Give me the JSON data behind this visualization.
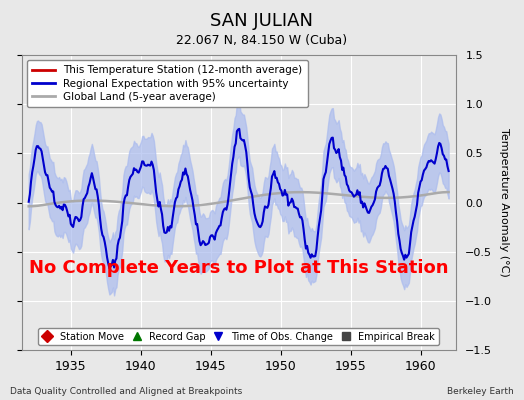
{
  "title": "SAN JULIAN",
  "subtitle": "22.067 N, 84.150 W (Cuba)",
  "ylabel": "Temperature Anomaly (°C)",
  "xlim": [
    1931.5,
    1962.5
  ],
  "ylim": [
    -1.5,
    1.5
  ],
  "xticks": [
    1935,
    1940,
    1945,
    1950,
    1955,
    1960
  ],
  "yticks": [
    -1.5,
    -1.0,
    -0.5,
    0.0,
    0.5,
    1.0,
    1.5
  ],
  "footnote_left": "Data Quality Controlled and Aligned at Breakpoints",
  "footnote_right": "Berkeley Earth",
  "annotation": "No Complete Years to Plot at This Station",
  "annotation_color": "#FF0000",
  "bg_color": "#E8E8E8",
  "plot_bg_color": "#E8E8E8",
  "grid_color": "#FFFFFF",
  "regional_line_color": "#0000CC",
  "regional_fill_color": "#AABBEE",
  "station_line_color": "#CC0000",
  "global_line_color": "#AAAAAA",
  "legend1_items": [
    {
      "label": "This Temperature Station (12-month average)",
      "color": "#CC0000",
      "lw": 2
    },
    {
      "label": "Regional Expectation with 95% uncertainty",
      "color": "#0000CC",
      "lw": 2
    },
    {
      "label": "Global Land (5-year average)",
      "color": "#AAAAAA",
      "lw": 2
    }
  ],
  "legend2_items": [
    {
      "label": "Station Move",
      "marker": "D",
      "color": "#CC0000"
    },
    {
      "label": "Record Gap",
      "marker": "^",
      "color": "#007700"
    },
    {
      "label": "Time of Obs. Change",
      "marker": "v",
      "color": "#0000CC"
    },
    {
      "label": "Empirical Break",
      "marker": "s",
      "color": "#444444"
    }
  ]
}
